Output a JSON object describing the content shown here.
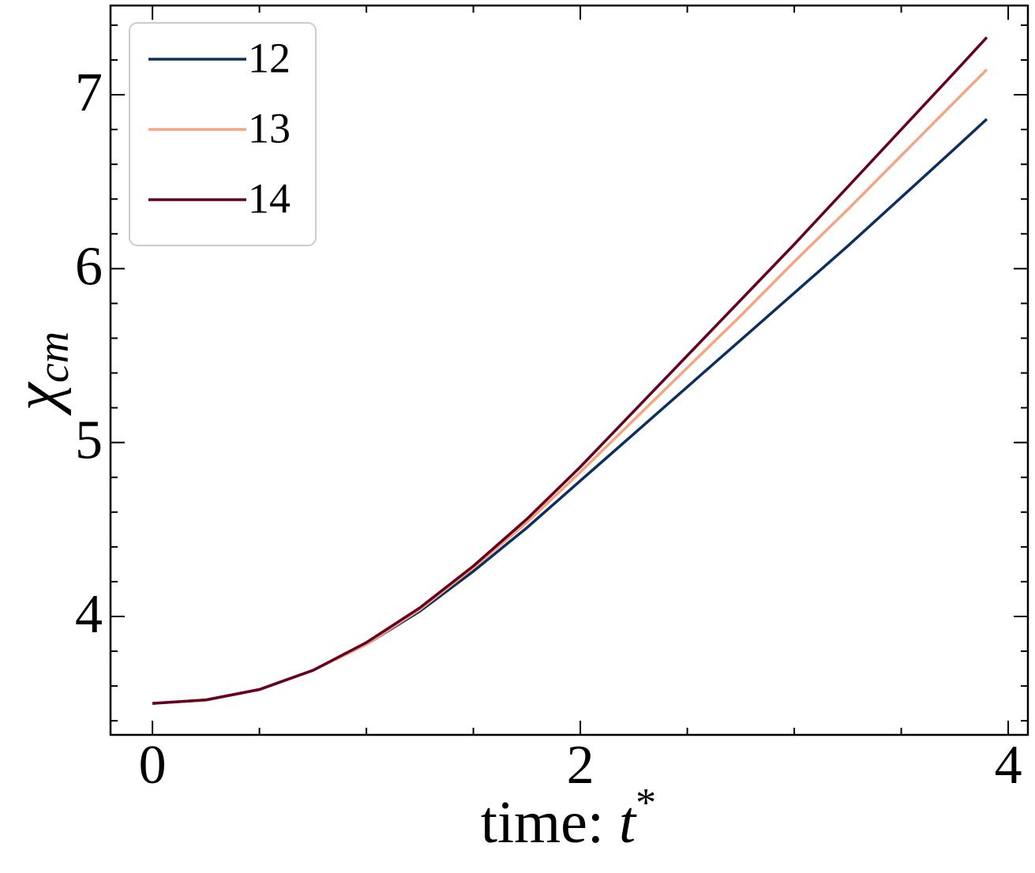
{
  "chart_data": {
    "type": "line",
    "xlabel": {
      "text": "time: ",
      "symbol": "t",
      "superscript": "*"
    },
    "ylabel": {
      "symbol": "χ",
      "subscript": "cm"
    },
    "x": [
      0,
      0.25,
      0.5,
      0.75,
      1.0,
      1.25,
      1.5,
      1.75,
      2.0,
      2.25,
      2.5,
      2.75,
      3.0,
      3.25,
      3.5,
      3.75,
      3.9
    ],
    "series": [
      {
        "name": "12",
        "color": "#0b3060",
        "values": [
          3.5,
          3.52,
          3.58,
          3.69,
          3.84,
          4.03,
          4.26,
          4.51,
          4.78,
          5.05,
          5.32,
          5.59,
          5.86,
          6.13,
          6.41,
          6.69,
          6.86
        ]
      },
      {
        "name": "13",
        "color": "#f4a582",
        "values": [
          3.5,
          3.52,
          3.58,
          3.69,
          3.84,
          4.04,
          4.28,
          4.54,
          4.83,
          5.13,
          5.43,
          5.73,
          6.04,
          6.34,
          6.65,
          6.96,
          7.145
        ]
      },
      {
        "name": "14",
        "color": "#67001f",
        "values": [
          3.5,
          3.52,
          3.58,
          3.69,
          3.85,
          4.05,
          4.29,
          4.56,
          4.86,
          5.18,
          5.5,
          5.82,
          6.14,
          6.47,
          6.8,
          7.13,
          7.33
        ]
      }
    ],
    "xlim": [
      -0.196,
      4.092
    ],
    "xticks": [
      0,
      2,
      4
    ],
    "ylim": [
      3.319,
      7.513
    ],
    "yticks": [
      4,
      5,
      6,
      7
    ],
    "legend": "upper left",
    "grid": false
  }
}
